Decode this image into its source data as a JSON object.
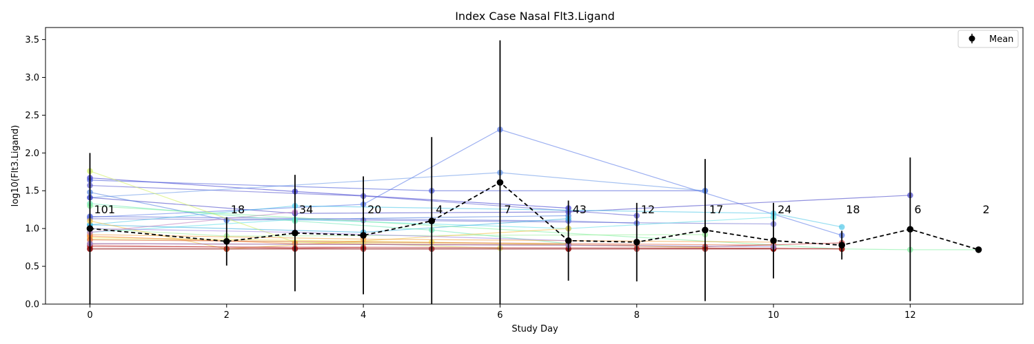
{
  "chart_data": {
    "type": "line",
    "title": "Index Case Nasal Flt3.Ligand",
    "xlabel": "Study Day",
    "ylabel": "log10(Flt3.Ligand)",
    "xlim": [
      -0.65,
      13.65
    ],
    "ylim": [
      0,
      3.66
    ],
    "xticks": [
      0,
      2,
      4,
      6,
      8,
      10,
      12
    ],
    "yticks": [
      0.0,
      0.5,
      1.0,
      1.5,
      2.0,
      2.5,
      3.0,
      3.5
    ],
    "xtick_labels": [
      "0",
      "2",
      "4",
      "6",
      "8",
      "10",
      "12"
    ],
    "ytick_labels": [
      "0.0",
      "0.5",
      "1.0",
      "1.5",
      "2.0",
      "2.5",
      "3.0",
      "3.5"
    ],
    "legend": {
      "placement": "top-right",
      "entries": [
        "Mean"
      ]
    },
    "mean_series": {
      "name": "Mean",
      "color": "#000000",
      "style": "dashed",
      "x": [
        0,
        2,
        3,
        4,
        5,
        6,
        7,
        8,
        9,
        10,
        11,
        12,
        13
      ],
      "y": [
        1.0,
        0.83,
        0.94,
        0.91,
        1.1,
        1.61,
        0.84,
        0.82,
        0.98,
        0.84,
        0.78,
        0.99,
        0.72
      ],
      "error": [
        1.0,
        0.32,
        0.77,
        0.78,
        1.11,
        1.88,
        0.53,
        0.52,
        0.94,
        0.5,
        0.19,
        0.95,
        0
      ]
    },
    "counts": {
      "x": [
        0,
        2,
        3,
        4,
        5,
        6,
        7,
        8,
        9,
        10,
        11,
        12,
        13
      ],
      "labels": [
        "101",
        "18",
        "34",
        "20",
        "4",
        "7",
        "43",
        "12",
        "17",
        "24",
        "18",
        "6",
        "2"
      ]
    },
    "individual_series": [
      {
        "color": "#3a3ad0",
        "x": [
          0,
          3,
          7
        ],
        "y": [
          1.67,
          1.49,
          1.27
        ]
      },
      {
        "color": "#4a5ad8",
        "x": [
          0,
          5,
          9
        ],
        "y": [
          1.64,
          1.5,
          1.5
        ]
      },
      {
        "color": "#5a5ad0",
        "x": [
          0,
          4,
          8
        ],
        "y": [
          1.57,
          1.43,
          1.17
        ]
      },
      {
        "color": "#5a7ae8",
        "x": [
          0,
          4,
          6,
          11
        ],
        "y": [
          1.15,
          1.32,
          2.31,
          0.91
        ]
      },
      {
        "color": "#6a9ae8",
        "x": [
          0,
          6,
          9
        ],
        "y": [
          1.41,
          1.74,
          1.5
        ]
      },
      {
        "color": "#4444c8",
        "x": [
          0,
          3,
          7,
          12
        ],
        "y": [
          1.41,
          1.2,
          1.22,
          1.44
        ]
      },
      {
        "color": "#5080e0",
        "x": [
          0,
          2,
          7
        ],
        "y": [
          1.48,
          1.11,
          1.17
        ]
      },
      {
        "color": "#7070d0",
        "x": [
          0,
          4,
          10
        ],
        "y": [
          1.13,
          1.11,
          1.06
        ]
      },
      {
        "color": "#5a6ad8",
        "x": [
          0,
          7,
          8
        ],
        "y": [
          1.16,
          1.1,
          1.07
        ]
      },
      {
        "color": "#50c8e8",
        "x": [
          0,
          3,
          10,
          11
        ],
        "y": [
          1.05,
          1.3,
          1.2,
          1.02
        ]
      },
      {
        "color": "#60e0e8",
        "x": [
          0,
          3,
          7,
          10
        ],
        "y": [
          0.95,
          1.12,
          1.0,
          1.15
        ]
      },
      {
        "color": "#40b0e0",
        "x": [
          0,
          4,
          7
        ],
        "y": [
          1.05,
          0.95,
          1.13
        ]
      },
      {
        "color": "#70e8b8",
        "x": [
          0,
          3,
          5,
          7
        ],
        "y": [
          1.33,
          1.1,
          0.98,
          0.8
        ]
      },
      {
        "color": "#80f0a0",
        "x": [
          0,
          11,
          12,
          13
        ],
        "y": [
          1.3,
          0.73,
          0.72,
          0.72
        ]
      },
      {
        "color": "#a0f0a0",
        "x": [
          0,
          2,
          9
        ],
        "y": [
          1.0,
          0.9,
          0.92
        ]
      },
      {
        "color": "#d0f060",
        "x": [
          0,
          3,
          7
        ],
        "y": [
          1.76,
          0.82,
          0.8
        ]
      },
      {
        "color": "#e0e870",
        "x": [
          0,
          2,
          4,
          6
        ],
        "y": [
          0.86,
          0.84,
          0.8,
          0.74
        ]
      },
      {
        "color": "#f0e050",
        "x": [
          0,
          5,
          9
        ],
        "y": [
          0.88,
          0.82,
          0.75
        ]
      },
      {
        "color": "#f0c040",
        "x": [
          0,
          2,
          7
        ],
        "y": [
          1.1,
          0.73,
          1.0
        ]
      },
      {
        "color": "#f0a040",
        "x": [
          0,
          4,
          10
        ],
        "y": [
          0.92,
          0.86,
          0.82
        ]
      },
      {
        "color": "#f08040",
        "x": [
          0,
          3,
          8
        ],
        "y": [
          0.9,
          0.8,
          0.78
        ]
      },
      {
        "color": "#e06040",
        "x": [
          0,
          7,
          10
        ],
        "y": [
          0.85,
          0.8,
          0.78
        ]
      },
      {
        "color": "#d04040",
        "x": [
          0,
          3,
          4
        ],
        "y": [
          0.78,
          0.74,
          0.75
        ]
      },
      {
        "color": "#c03030",
        "x": [
          0,
          7,
          9,
          11
        ],
        "y": [
          0.8,
          0.78,
          0.76,
          0.81
        ]
      },
      {
        "color": "#b02020",
        "x": [
          0,
          10,
          11
        ],
        "y": [
          0.76,
          0.74,
          0.73
        ]
      },
      {
        "color": "#a01818",
        "x": [
          0,
          2,
          4,
          7,
          8,
          10,
          11
        ],
        "y": [
          0.73,
          0.73,
          0.73,
          0.73,
          0.73,
          0.73,
          0.73
        ]
      },
      {
        "color": "#8a1010",
        "x": [
          0,
          3,
          5,
          7,
          9,
          10
        ],
        "y": [
          0.73,
          0.73,
          0.73,
          0.73,
          0.73,
          0.73
        ]
      },
      {
        "color": "#9090e0",
        "x": [
          0,
          7,
          10
        ],
        "y": [
          0.8,
          0.78,
          0.76
        ]
      },
      {
        "color": "#a080e0",
        "x": [
          0,
          3,
          7
        ],
        "y": [
          1.0,
          0.95,
          0.84
        ]
      },
      {
        "color": "#c080c0",
        "x": [
          0,
          3
        ],
        "y": [
          0.95,
          1.22
        ]
      }
    ]
  }
}
